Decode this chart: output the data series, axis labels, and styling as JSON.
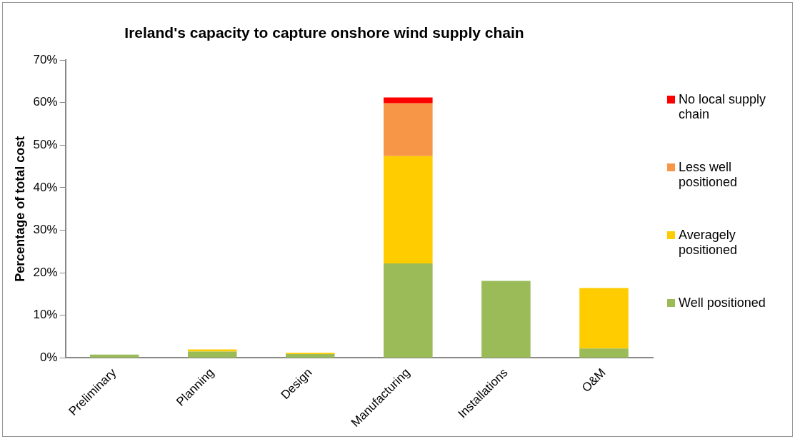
{
  "chart_data": {
    "type": "bar",
    "title": "Ireland's capacity to capture onshore wind supply chain",
    "ylabel": "Percentage of total cost",
    "categories": [
      "Preliminary",
      "Planning",
      "Design",
      "Manufacturing",
      "Installations",
      "O&M"
    ],
    "stacked": true,
    "series": [
      {
        "name": "Well positioned",
        "color": "#9bbb59",
        "values": [
          0.8,
          1.5,
          0.9,
          22.2,
          18.1,
          2.2
        ]
      },
      {
        "name": "Averagely positioned",
        "color": "#ffcc00",
        "values": [
          0,
          0.5,
          0.3,
          25.2,
          0,
          14.2
        ]
      },
      {
        "name": "Less well positioned",
        "color": "#f79646",
        "values": [
          0,
          0,
          0,
          12.4,
          0,
          0
        ]
      },
      {
        "name": "No local supply chain",
        "color": "#ff0000",
        "values": [
          0,
          0,
          0,
          1.4,
          0,
          0
        ]
      }
    ],
    "ylim": [
      0,
      70
    ],
    "yticks": [
      {
        "value": 0,
        "label": "0%"
      },
      {
        "value": 10,
        "label": "10%"
      },
      {
        "value": 20,
        "label": "20%"
      },
      {
        "value": 30,
        "label": "30%"
      },
      {
        "value": 40,
        "label": "40%"
      },
      {
        "value": 50,
        "label": "50%"
      },
      {
        "value": 60,
        "label": "60%"
      },
      {
        "value": 70,
        "label": "70%"
      }
    ],
    "grid": false,
    "legend": "right"
  }
}
